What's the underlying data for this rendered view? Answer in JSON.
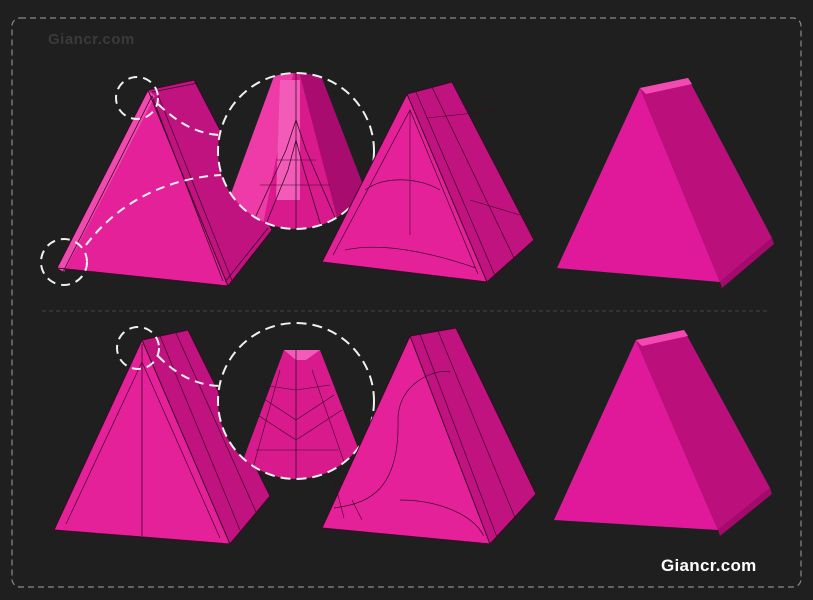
{
  "watermark": {
    "top": "Giancr.com",
    "bottom": "Giancr.com"
  },
  "colors": {
    "background": "#1f1f1f",
    "frame_dash": "#8a8a8a",
    "divider": "#3c3c3c",
    "mesh_face_light": "#e8259c",
    "mesh_face_dark": "#b8107a",
    "mesh_line": "#3a0a26",
    "callout_dash": "#f0f0f0"
  }
}
